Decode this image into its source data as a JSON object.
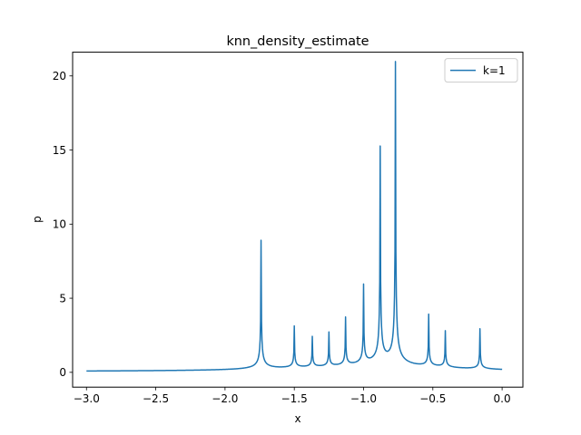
{
  "chart_data": {
    "type": "line",
    "title": "knn_density_estimate",
    "xlabel": "x",
    "ylabel": "p",
    "xlim": [
      -3.1,
      0.15
    ],
    "ylim": [
      -1.0,
      21.6
    ],
    "xticks": [
      -3.0,
      -2.5,
      -2.0,
      -1.5,
      -1.0,
      -0.5,
      0.0
    ],
    "xtick_labels": [
      "−3.0",
      "−2.5",
      "−2.0",
      "−1.5",
      "−1.0",
      "−0.5",
      "0.0"
    ],
    "yticks": [
      0,
      5,
      10,
      15,
      20
    ],
    "ytick_labels": [
      "0",
      "5",
      "10",
      "15",
      "20"
    ],
    "grid": false,
    "legend_position": "top-right",
    "series": [
      {
        "name": "k=1",
        "color": "#1f77b4",
        "baseline": 0.02,
        "x_range": [
          -3.0,
          0.0
        ],
        "peaks": [
          {
            "x": -1.74,
            "y": 8.75
          },
          {
            "x": -1.5,
            "y": 2.85
          },
          {
            "x": -1.37,
            "y": 2.1
          },
          {
            "x": -1.25,
            "y": 2.35
          },
          {
            "x": -1.13,
            "y": 3.3
          },
          {
            "x": -1.0,
            "y": 5.4
          },
          {
            "x": -0.88,
            "y": 14.7
          },
          {
            "x": -0.77,
            "y": 20.55
          },
          {
            "x": -0.53,
            "y": 3.55
          },
          {
            "x": -0.41,
            "y": 2.5
          },
          {
            "x": -0.16,
            "y": 2.75
          }
        ]
      }
    ]
  }
}
